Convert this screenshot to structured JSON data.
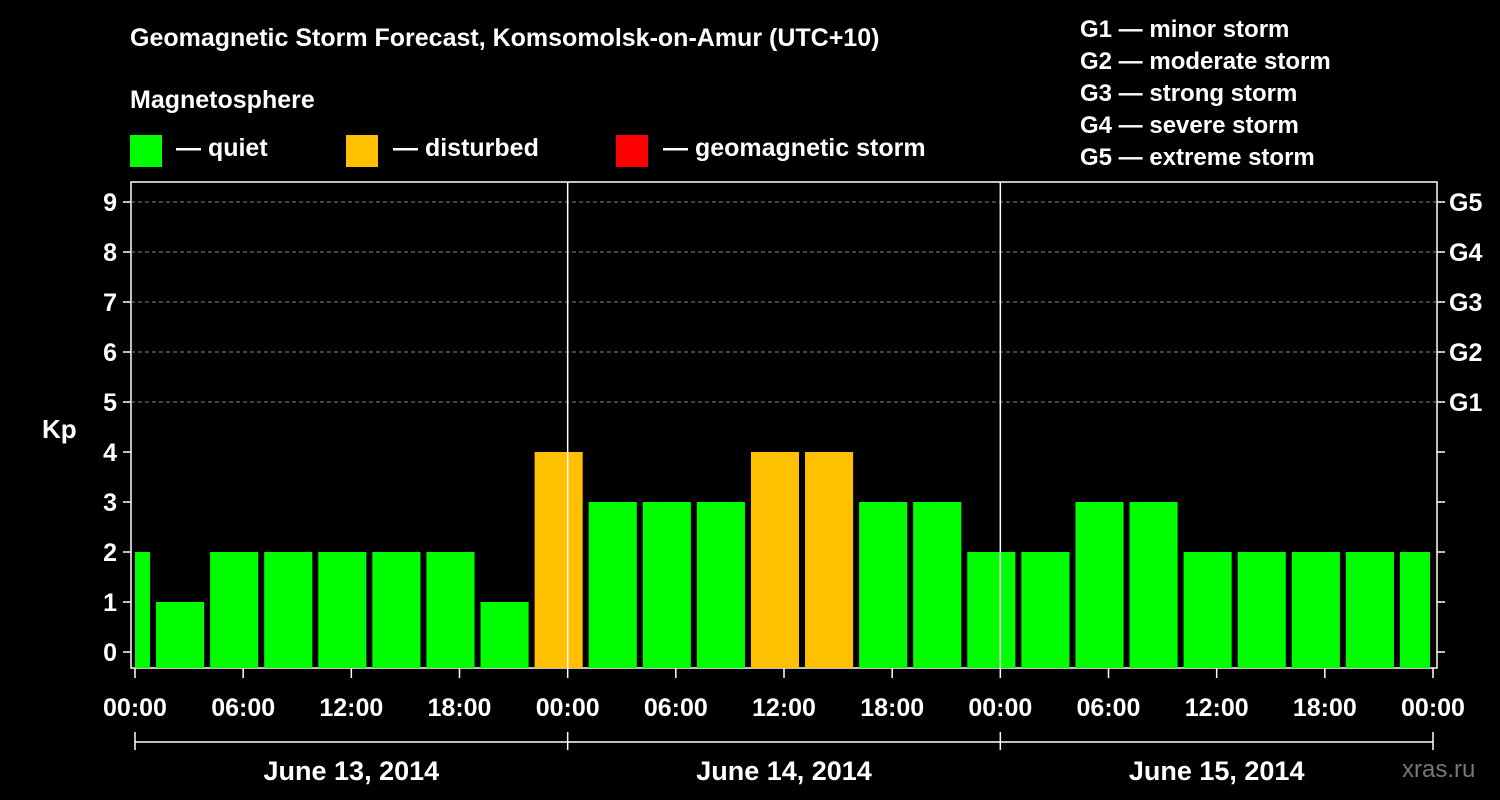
{
  "header": {
    "title": "Geomagnetic Storm Forecast, Komsomolsk-on-Amur (UTC+10)",
    "magnetosphere_label": "Magnetosphere"
  },
  "legend": {
    "items": [
      {
        "label": "— quiet",
        "color": "#00ff00"
      },
      {
        "label": "— disturbed",
        "color": "#ffc000"
      },
      {
        "label": "— geomagnetic storm",
        "color": "#ff0000"
      }
    ],
    "storm_levels": [
      "G1 — minor storm",
      "G2 — moderate storm",
      "G3 — strong storm",
      "G4 — severe storm",
      "G5 — extreme storm"
    ]
  },
  "watermark": "xras.ru",
  "chart_data": {
    "type": "bar",
    "ylabel": "Kp",
    "ylim": [
      0,
      9
    ],
    "y_ticks": [
      "0",
      "1",
      "2",
      "3",
      "4",
      "5",
      "6",
      "7",
      "8",
      "9"
    ],
    "right_ticks": [
      {
        "value": 5,
        "label": "G1"
      },
      {
        "value": 6,
        "label": "G2"
      },
      {
        "value": 7,
        "label": "G3"
      },
      {
        "value": 8,
        "label": "G4"
      },
      {
        "value": 9,
        "label": "G5"
      }
    ],
    "x_tick_labels": [
      "00:00",
      "06:00",
      "12:00",
      "18:00",
      "00:00",
      "06:00",
      "12:00",
      "18:00",
      "00:00",
      "06:00",
      "12:00",
      "18:00",
      "00:00"
    ],
    "x_tick_hours": [
      0,
      6,
      12,
      18,
      24,
      30,
      36,
      42,
      48,
      54,
      60,
      66,
      72
    ],
    "days": [
      "June 13, 2014",
      "June 14, 2014",
      "June 15, 2014"
    ],
    "bars": [
      {
        "start_hour": 0,
        "end_hour": 1,
        "kp": 2,
        "status": "quiet"
      },
      {
        "start_hour": 1,
        "end_hour": 4,
        "kp": 1,
        "status": "quiet"
      },
      {
        "start_hour": 4,
        "end_hour": 7,
        "kp": 2,
        "status": "quiet"
      },
      {
        "start_hour": 7,
        "end_hour": 10,
        "kp": 2,
        "status": "quiet"
      },
      {
        "start_hour": 10,
        "end_hour": 13,
        "kp": 2,
        "status": "quiet"
      },
      {
        "start_hour": 13,
        "end_hour": 16,
        "kp": 2,
        "status": "quiet"
      },
      {
        "start_hour": 16,
        "end_hour": 19,
        "kp": 2,
        "status": "quiet"
      },
      {
        "start_hour": 19,
        "end_hour": 22,
        "kp": 1,
        "status": "quiet"
      },
      {
        "start_hour": 22,
        "end_hour": 25,
        "kp": 4,
        "status": "disturbed"
      },
      {
        "start_hour": 25,
        "end_hour": 28,
        "kp": 3,
        "status": "quiet"
      },
      {
        "start_hour": 28,
        "end_hour": 31,
        "kp": 3,
        "status": "quiet"
      },
      {
        "start_hour": 31,
        "end_hour": 34,
        "kp": 3,
        "status": "quiet"
      },
      {
        "start_hour": 34,
        "end_hour": 37,
        "kp": 4,
        "status": "disturbed"
      },
      {
        "start_hour": 37,
        "end_hour": 40,
        "kp": 4,
        "status": "disturbed"
      },
      {
        "start_hour": 40,
        "end_hour": 43,
        "kp": 3,
        "status": "quiet"
      },
      {
        "start_hour": 43,
        "end_hour": 46,
        "kp": 3,
        "status": "quiet"
      },
      {
        "start_hour": 46,
        "end_hour": 49,
        "kp": 2,
        "status": "quiet"
      },
      {
        "start_hour": 49,
        "end_hour": 52,
        "kp": 2,
        "status": "quiet"
      },
      {
        "start_hour": 52,
        "end_hour": 55,
        "kp": 3,
        "status": "quiet"
      },
      {
        "start_hour": 55,
        "end_hour": 58,
        "kp": 3,
        "status": "quiet"
      },
      {
        "start_hour": 58,
        "end_hour": 61,
        "kp": 2,
        "status": "quiet"
      },
      {
        "start_hour": 61,
        "end_hour": 64,
        "kp": 2,
        "status": "quiet"
      },
      {
        "start_hour": 64,
        "end_hour": 67,
        "kp": 2,
        "status": "quiet"
      },
      {
        "start_hour": 67,
        "end_hour": 70,
        "kp": 2,
        "status": "quiet"
      },
      {
        "start_hour": 70,
        "end_hour": 72,
        "kp": 2,
        "status": "quiet"
      }
    ],
    "colors": {
      "quiet": "#00ff00",
      "disturbed": "#ffc000",
      "storm": "#ff0000"
    }
  }
}
